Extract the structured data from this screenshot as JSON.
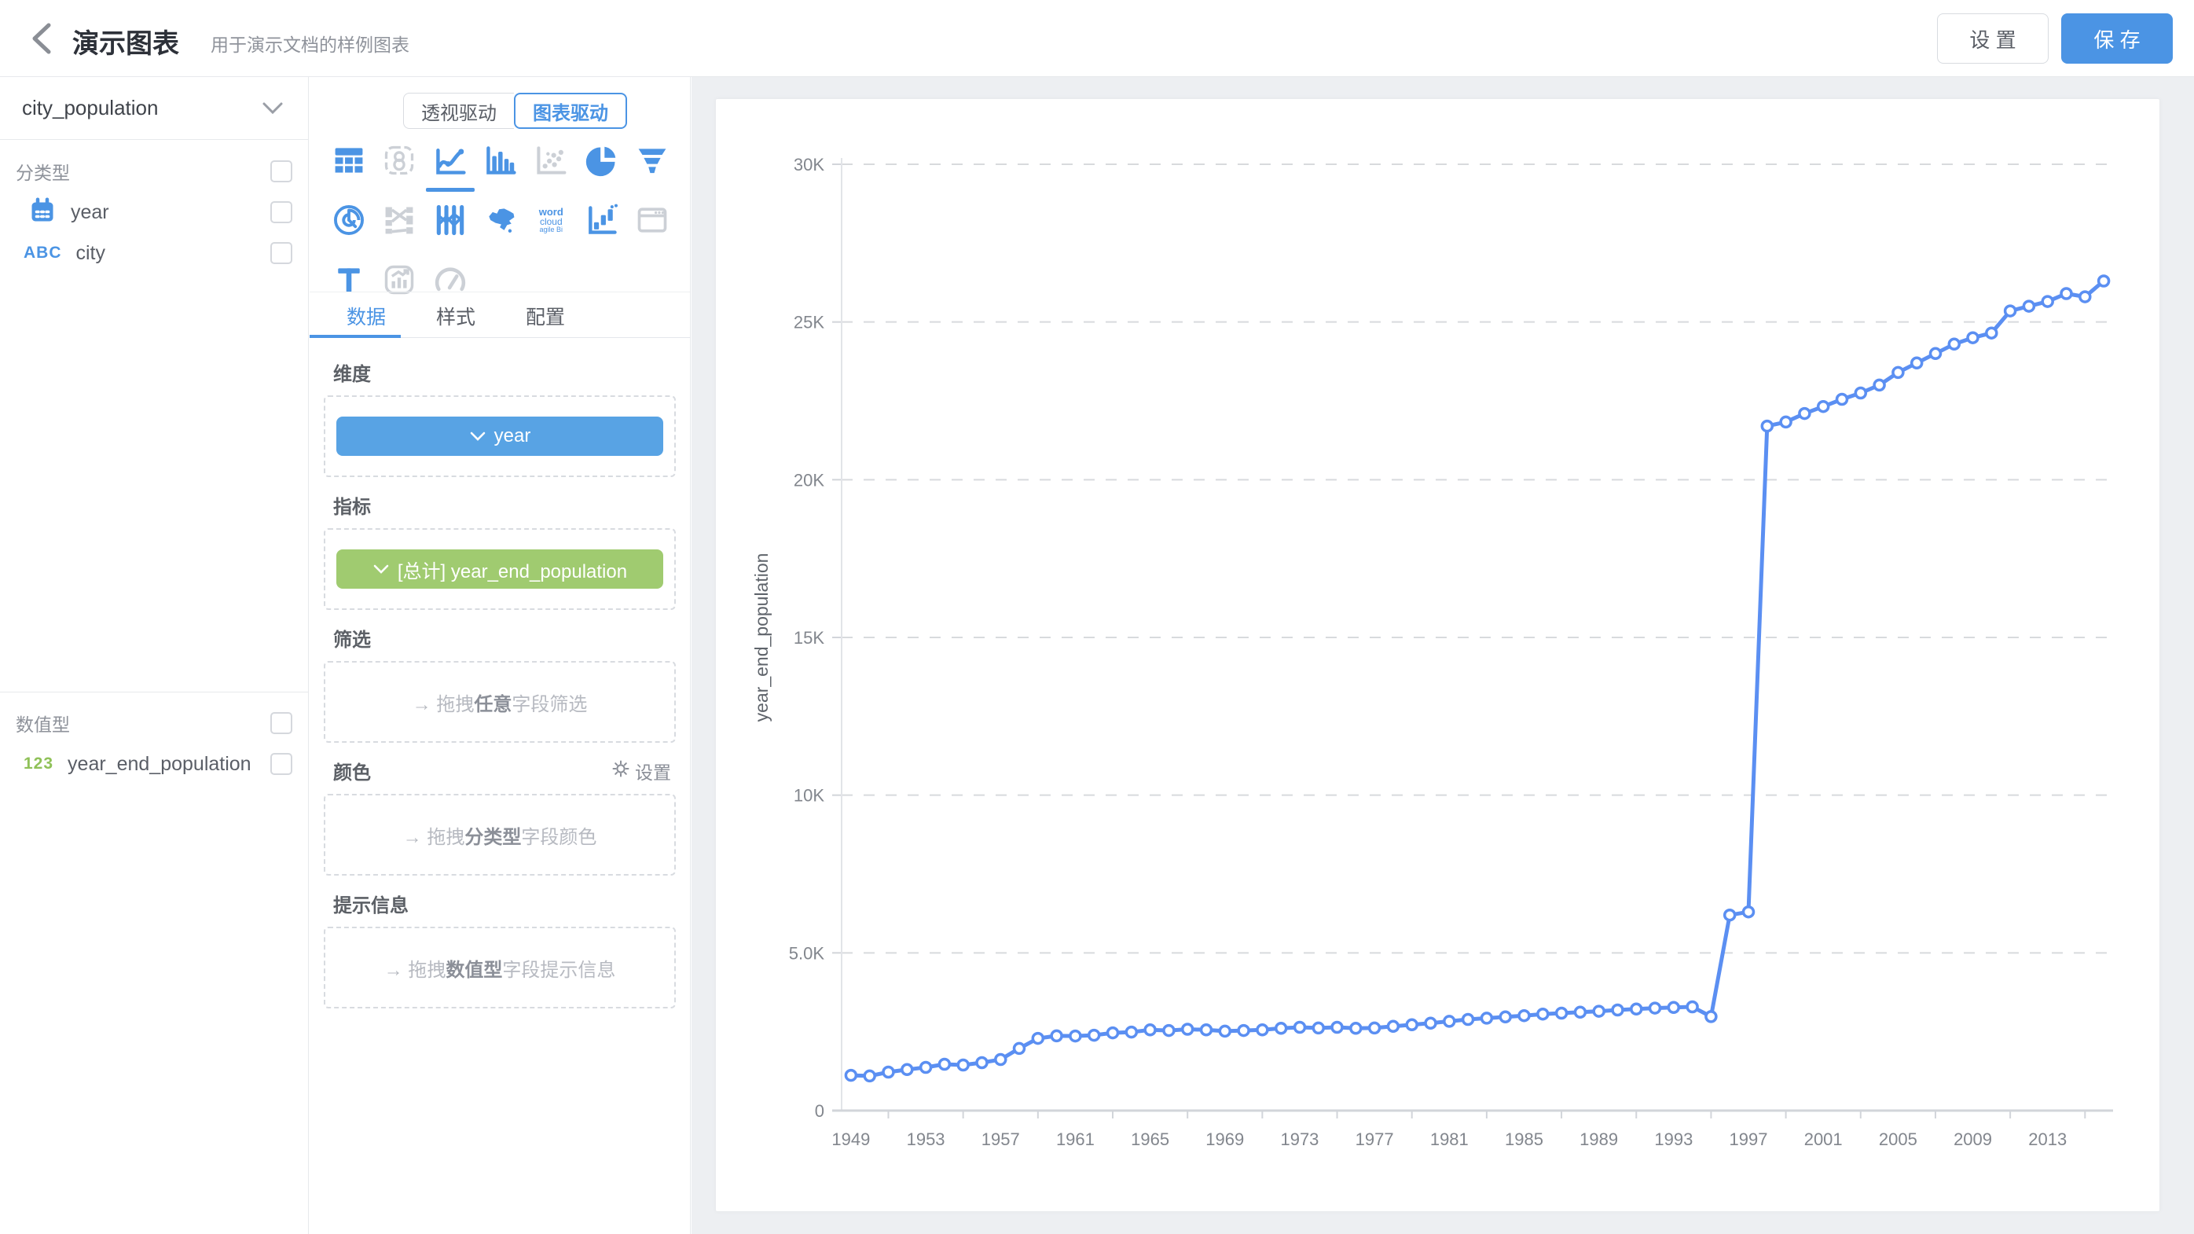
{
  "header": {
    "title": "演示图表",
    "subtitle": "用于演示文档的样例图表",
    "settings_label": "设 置",
    "save_label": "保 存"
  },
  "sidebar": {
    "dataset_selector": "city_population",
    "category_section": {
      "label": "分类型",
      "fields": [
        {
          "name": "year",
          "icon": "calendar-icon"
        },
        {
          "name": "city",
          "icon": "abc-icon",
          "badge": "ABC"
        }
      ]
    },
    "numeric_section": {
      "label": "数值型",
      "fields": [
        {
          "name": "year_end_population",
          "icon": "123-icon",
          "badge": "123"
        }
      ]
    }
  },
  "panel": {
    "mode_toggle": {
      "options": [
        "透视驱动",
        "图表驱动"
      ],
      "selected": "图表驱动"
    },
    "chart_icons": [
      {
        "name": "table-chart",
        "state": "active"
      },
      {
        "name": "indicator-card",
        "state": "disabled"
      },
      {
        "name": "line-chart",
        "state": "selected"
      },
      {
        "name": "bar-chart",
        "state": "active"
      },
      {
        "name": "scatter-chart",
        "state": "disabled"
      },
      {
        "name": "pie-chart",
        "state": "active"
      },
      {
        "name": "funnel-chart",
        "state": "active"
      },
      {
        "name": "radar-chart",
        "state": "active"
      },
      {
        "name": "sankey-chart",
        "state": "disabled"
      },
      {
        "name": "parallel-chart",
        "state": "active"
      },
      {
        "name": "china-map-chart",
        "state": "active"
      },
      {
        "name": "word-cloud-chart",
        "state": "active"
      },
      {
        "name": "waterfall-chart",
        "state": "active"
      },
      {
        "name": "iframe-widget",
        "state": "disabled"
      },
      {
        "name": "text-widget",
        "state": "active"
      },
      {
        "name": "mix-chart",
        "state": "disabled"
      },
      {
        "name": "gauge-chart",
        "state": "disabled"
      }
    ],
    "word_cloud_icon_text": [
      "word",
      "cloud",
      "agile Bi"
    ],
    "tabs": {
      "items": [
        "数据",
        "样式",
        "配置"
      ],
      "active": "数据"
    },
    "sections": {
      "dimension_label": "维度",
      "dimension_pill": "year",
      "measure_label": "指标",
      "measure_pill": "[总计] year_end_population",
      "filter_label": "筛选",
      "filter_placeholder": {
        "arrow": "→",
        "prefix": " 拖拽",
        "bold": "任意",
        "suffix": "字段筛选"
      },
      "color_label": "颜色",
      "color_settings_link": "设置",
      "color_placeholder": {
        "arrow": "→",
        "prefix": " 拖拽",
        "bold": "分类型",
        "suffix": "字段颜色"
      },
      "tooltip_label": "提示信息",
      "tooltip_placeholder": {
        "arrow": "→",
        "prefix": " 拖拽",
        "bold": "数值型",
        "suffix": "字段提示信息"
      }
    }
  },
  "colors": {
    "accent_blue": "#4b94e4",
    "pill_blue": "#58a3e4",
    "pill_green": "#a0cb70",
    "line_blue": "#5b8ff2",
    "icon_disabled": "#ccd0d6",
    "canvas_bg": "#edeff2",
    "grid_dash": "#d8dadd",
    "axis_line": "#d2d5da",
    "tick_text": "#82868d"
  },
  "chart_data": {
    "type": "line",
    "title": "",
    "xlabel": "",
    "ylabel": "year_end_population",
    "ylim": [
      0,
      30000
    ],
    "grid": "horizontal-dashed",
    "legend": "none",
    "line_color": "#5b8ff2",
    "marker": "hollow-circle",
    "x_label_every": 4,
    "x": [
      1949,
      1950,
      1951,
      1952,
      1953,
      1954,
      1955,
      1956,
      1957,
      1958,
      1959,
      1960,
      1961,
      1962,
      1963,
      1964,
      1965,
      1966,
      1967,
      1968,
      1969,
      1970,
      1971,
      1972,
      1973,
      1974,
      1975,
      1976,
      1977,
      1978,
      1979,
      1980,
      1981,
      1982,
      1983,
      1984,
      1985,
      1986,
      1987,
      1988,
      1989,
      1990,
      1991,
      1992,
      1993,
      1994,
      1995,
      1996,
      1997,
      1998,
      1999,
      2000,
      2001,
      2002,
      2003,
      2004,
      2005,
      2006,
      2007,
      2008,
      2009,
      2010,
      2011,
      2012,
      2013,
      2014,
      2015,
      2016
    ],
    "series": [
      {
        "name": "year_end_population",
        "values": [
          1120,
          1100,
          1220,
          1300,
          1370,
          1470,
          1445,
          1520,
          1620,
          1970,
          2290,
          2370,
          2365,
          2390,
          2465,
          2490,
          2560,
          2540,
          2580,
          2560,
          2520,
          2540,
          2560,
          2610,
          2640,
          2620,
          2640,
          2610,
          2620,
          2670,
          2720,
          2770,
          2830,
          2890,
          2930,
          2970,
          3010,
          3060,
          3090,
          3120,
          3150,
          3190,
          3220,
          3250,
          3270,
          3290,
          2980,
          6200,
          6300,
          21700,
          21830,
          22100,
          22320,
          22550,
          22750,
          23000,
          23400,
          23700,
          24000,
          24300,
          24500,
          24650,
          25350,
          25500,
          25650,
          25900,
          25800,
          26300
        ]
      }
    ],
    "y_ticks": [
      {
        "value": 0,
        "label": "0"
      },
      {
        "value": 5000,
        "label": "5.0K"
      },
      {
        "value": 10000,
        "label": "10K"
      },
      {
        "value": 15000,
        "label": "15K"
      },
      {
        "value": 20000,
        "label": "20K"
      },
      {
        "value": 25000,
        "label": "25K"
      },
      {
        "value": 30000,
        "label": "30K"
      }
    ],
    "x_tick_labels": [
      "1949",
      "1953",
      "1957",
      "1961",
      "1965",
      "1969",
      "1973",
      "1977",
      "1981",
      "1985",
      "1989",
      "1993",
      "1997",
      "2001",
      "2005",
      "2009",
      "2013"
    ]
  }
}
